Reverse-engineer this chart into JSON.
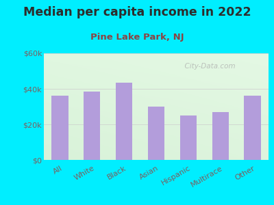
{
  "title": "Median per capita income in 2022",
  "subtitle": "Pine Lake Park, NJ",
  "categories": [
    "All",
    "White",
    "Black",
    "Asian",
    "Hispanic",
    "Multirace",
    "Other"
  ],
  "values": [
    36000,
    38500,
    43500,
    30000,
    25000,
    27000,
    36000
  ],
  "bar_color": "#b39ddb",
  "background_outer": "#00eeff",
  "title_color": "#2d2d2d",
  "subtitle_color": "#8b4444",
  "tick_color": "#7a6060",
  "ylim": [
    0,
    60000
  ],
  "yticks": [
    0,
    20000,
    40000,
    60000
  ],
  "ytick_labels": [
    "$0",
    "$20k",
    "$40k",
    "$60k"
  ],
  "watermark": "  City-Data.com",
  "title_fontsize": 12.5,
  "subtitle_fontsize": 9.5,
  "tick_fontsize": 8
}
